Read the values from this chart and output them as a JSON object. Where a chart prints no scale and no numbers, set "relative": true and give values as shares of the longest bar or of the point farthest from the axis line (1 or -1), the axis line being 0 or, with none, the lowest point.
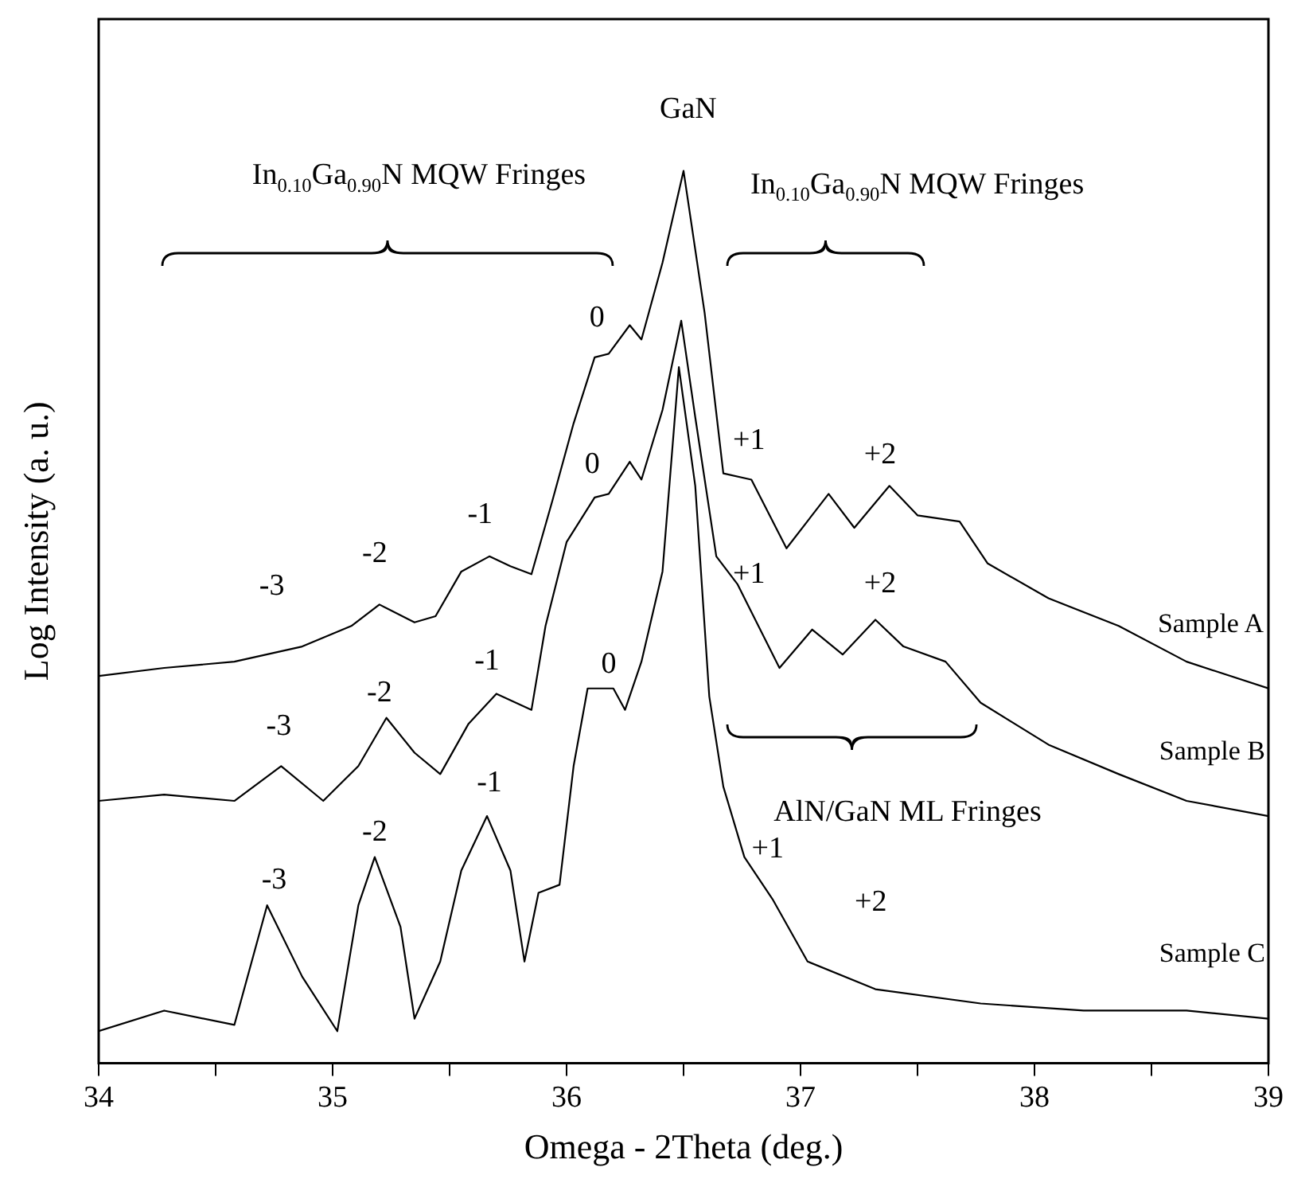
{
  "chart_data": {
    "type": "line",
    "relative": true,
    "xlabel": "Omega - 2Theta (deg.)",
    "ylabel": "Log Intensity (a. u.)",
    "xlim": [
      34,
      39
    ],
    "xticks": [
      34,
      {
        "value": 34.5,
        "label": null
      },
      35,
      {
        "value": 35.5,
        "label": null
      },
      36,
      {
        "value": 36.5,
        "label": null
      },
      37,
      {
        "value": 37.5,
        "label": null
      },
      38,
      {
        "value": 38.5,
        "label": null
      },
      39
    ],
    "grid": false,
    "legend": false,
    "marker": "none",
    "line_style": "solid",
    "series": [
      {
        "name": "Sample A",
        "color": "#000000",
        "x": [
          34.0,
          34.28,
          34.58,
          34.87,
          35.08,
          35.2,
          35.35,
          35.44,
          35.55,
          35.67,
          35.76,
          35.85,
          35.94,
          36.03,
          36.12,
          36.18,
          36.27,
          36.32,
          36.41,
          36.5,
          36.59,
          36.67,
          36.79,
          36.94,
          37.12,
          37.23,
          37.38,
          37.5,
          37.68,
          37.8,
          38.06,
          38.36,
          38.65,
          39.0
        ],
        "values": [
          0.434,
          0.443,
          0.45,
          0.467,
          0.49,
          0.514,
          0.494,
          0.501,
          0.551,
          0.568,
          0.557,
          0.548,
          0.631,
          0.717,
          0.791,
          0.795,
          0.827,
          0.811,
          0.897,
          1.0,
          0.841,
          0.661,
          0.654,
          0.577,
          0.638,
          0.6,
          0.647,
          0.614,
          0.607,
          0.56,
          0.521,
          0.49,
          0.45,
          0.42
        ]
      },
      {
        "name": "Sample B",
        "color": "#000000",
        "x": [
          34.0,
          34.28,
          34.58,
          34.78,
          34.96,
          35.11,
          35.23,
          35.35,
          35.46,
          35.58,
          35.7,
          35.85,
          35.91,
          36.0,
          36.12,
          36.18,
          36.27,
          36.32,
          36.41,
          36.49,
          36.55,
          36.64,
          36.73,
          36.91,
          37.05,
          37.18,
          37.32,
          37.44,
          37.62,
          37.77,
          38.06,
          38.36,
          38.65,
          39.0
        ],
        "values": [
          0.294,
          0.301,
          0.294,
          0.333,
          0.294,
          0.333,
          0.387,
          0.348,
          0.324,
          0.38,
          0.414,
          0.396,
          0.49,
          0.584,
          0.634,
          0.638,
          0.674,
          0.654,
          0.732,
          0.832,
          0.724,
          0.568,
          0.537,
          0.443,
          0.486,
          0.458,
          0.497,
          0.467,
          0.45,
          0.404,
          0.357,
          0.324,
          0.294,
          0.277
        ]
      },
      {
        "name": "Sample C",
        "color": "#000000",
        "x": [
          34.0,
          34.28,
          34.58,
          34.72,
          34.87,
          35.02,
          35.11,
          35.18,
          35.29,
          35.35,
          35.46,
          35.55,
          35.66,
          35.76,
          35.82,
          35.88,
          35.97,
          36.03,
          36.09,
          36.2,
          36.25,
          36.32,
          36.41,
          36.48,
          36.55,
          36.61,
          36.67,
          36.76,
          36.88,
          37.03,
          37.32,
          37.77,
          38.21,
          38.65,
          39.0
        ],
        "values": [
          0.036,
          0.059,
          0.043,
          0.177,
          0.097,
          0.036,
          0.177,
          0.231,
          0.153,
          0.05,
          0.114,
          0.216,
          0.277,
          0.216,
          0.114,
          0.191,
          0.2,
          0.333,
          0.42,
          0.42,
          0.396,
          0.45,
          0.551,
          0.78,
          0.647,
          0.411,
          0.31,
          0.231,
          0.184,
          0.114,
          0.083,
          0.067,
          0.059,
          0.059,
          0.05
        ]
      }
    ],
    "annotations": [
      "In$_{0.10}$Ga$_{0.90}$N MQW Fringes",
      "GaN",
      "In$_{0.10}$Ga$_{0.90}$N MQW Fringes",
      "AlN/GaN ML Fringes",
      "0",
      "-1",
      "-2",
      "-3",
      "+1",
      "+2",
      "0",
      "-1",
      "-2",
      "-3",
      "+1",
      "+2",
      "0",
      "-1",
      "-2",
      "-3",
      "+1",
      "+2"
    ]
  }
}
